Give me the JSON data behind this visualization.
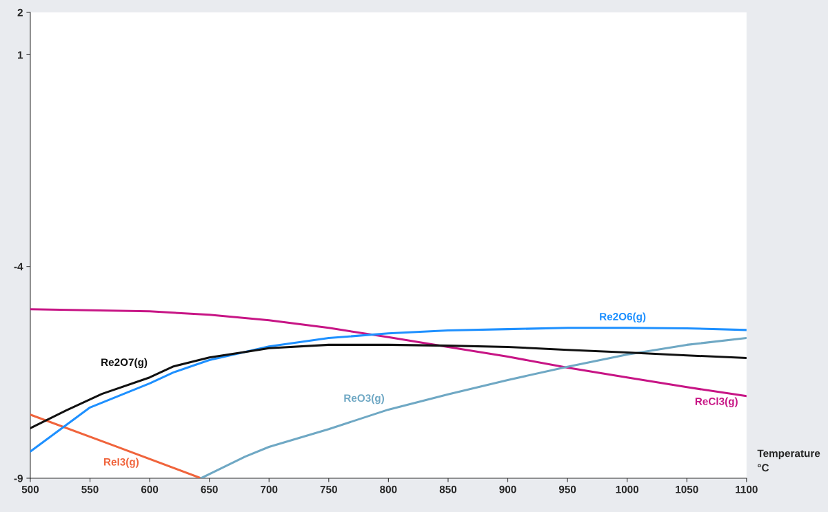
{
  "chart_data": {
    "type": "line",
    "xlabel": "Temperature °C",
    "xlim": [
      500,
      1100
    ],
    "ylim": [
      -9,
      2
    ],
    "xticks": [
      500,
      550,
      600,
      650,
      700,
      750,
      800,
      850,
      900,
      950,
      1000,
      1050,
      1100
    ],
    "yticks": [
      2,
      1,
      -4,
      -9
    ],
    "grid": false,
    "legend": false,
    "marker": "none",
    "line_style": "solid",
    "series": [
      {
        "name": "Re2O7(g)",
        "color": "#111111",
        "x": [
          500,
          530,
          560,
          600,
          620,
          650,
          680,
          700,
          750,
          800,
          850,
          900,
          950,
          1000,
          1050,
          1100
        ],
        "values": [
          -7.82,
          -7.4,
          -7.01,
          -6.62,
          -6.36,
          -6.15,
          -6.02,
          -5.93,
          -5.85,
          -5.85,
          -5.87,
          -5.9,
          -5.97,
          -6.03,
          -6.1,
          -6.16
        ]
      },
      {
        "name": "Re2O6(g)",
        "color": "#1e90ff",
        "x": [
          500,
          550,
          600,
          620,
          650,
          700,
          750,
          800,
          850,
          900,
          950,
          1000,
          1050,
          1100
        ],
        "values": [
          -8.37,
          -7.33,
          -6.76,
          -6.5,
          -6.21,
          -5.89,
          -5.69,
          -5.58,
          -5.51,
          -5.48,
          -5.45,
          -5.45,
          -5.46,
          -5.5
        ]
      },
      {
        "name": "ReO3(g)",
        "color": "#6fa8c4",
        "x": [
          643,
          680,
          700,
          750,
          800,
          850,
          900,
          950,
          1000,
          1050,
          1100
        ],
        "values": [
          -9.0,
          -8.49,
          -8.26,
          -7.84,
          -7.38,
          -7.02,
          -6.68,
          -6.37,
          -6.08,
          -5.85,
          -5.69
        ]
      },
      {
        "name": "ReCl3(g)",
        "color": "#c71585",
        "x": [
          500,
          600,
          650,
          700,
          750,
          800,
          850,
          900,
          950,
          1000,
          1050,
          1100
        ],
        "values": [
          -5.01,
          -5.06,
          -5.14,
          -5.27,
          -5.45,
          -5.67,
          -5.9,
          -6.13,
          -6.39,
          -6.62,
          -6.85,
          -7.06
        ]
      },
      {
        "name": "ReI3(g)",
        "color": "#f0643c",
        "x": [
          500,
          570,
          643
        ],
        "values": [
          -7.5,
          -8.23,
          -9.0
        ]
      }
    ]
  }
}
